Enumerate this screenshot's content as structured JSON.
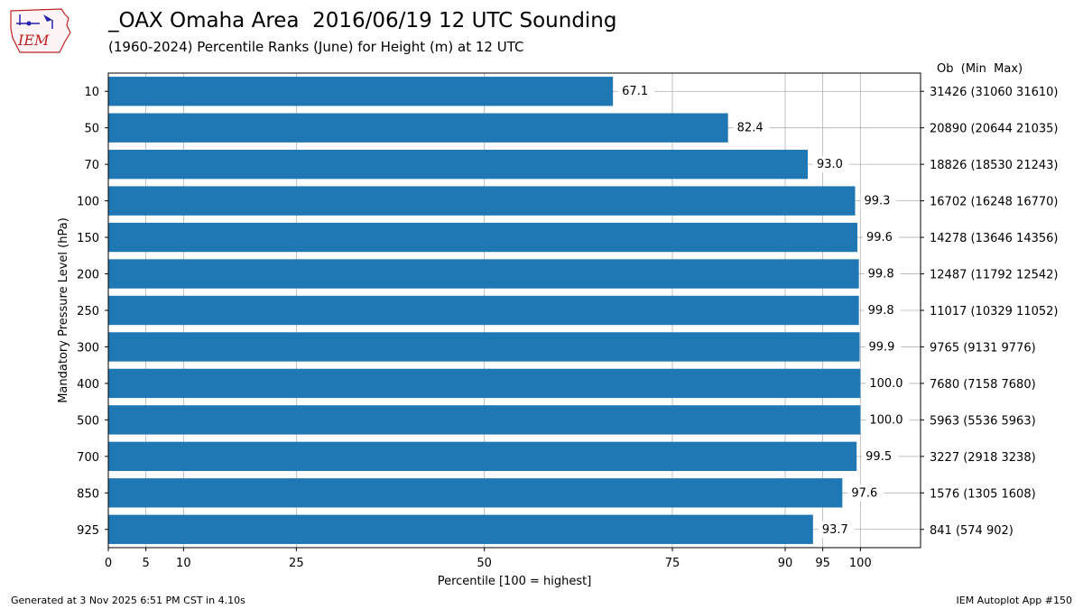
{
  "logo_text": "IEM",
  "chart_data": {
    "type": "bar",
    "orientation": "horizontal",
    "title": "_OAX Omaha Area  2016/06/19 12 UTC Sounding",
    "subtitle": "(1960-2024) Percentile Ranks (June) for Height (m) at 12 UTC",
    "xlabel": "Percentile [100 = highest]",
    "ylabel": "Mandatory Pressure Level (hPa)",
    "xlim": [
      0,
      108
    ],
    "xticks": [
      0,
      5,
      10,
      25,
      50,
      75,
      90,
      95,
      100
    ],
    "grid": true,
    "right_header": "Ob  (Min  Max)",
    "color": "#1f77b4",
    "categories": [
      "10",
      "50",
      "70",
      "100",
      "150",
      "200",
      "250",
      "300",
      "400",
      "500",
      "700",
      "850",
      "925"
    ],
    "values": [
      67.1,
      82.4,
      93.0,
      99.3,
      99.6,
      99.8,
      99.8,
      99.9,
      100.0,
      100.0,
      99.5,
      97.6,
      93.7
    ],
    "value_labels": [
      "67.1",
      "82.4",
      "93.0",
      "99.3",
      "99.6",
      "99.8",
      "99.8",
      "99.9",
      "100.0",
      "100.0",
      "99.5",
      "97.6",
      "93.7"
    ],
    "right_labels": [
      "31426 (31060 31610)",
      "20890 (20644 21035)",
      "18826 (18530 21243)",
      "16702 (16248 16770)",
      "14278 (13646 14356)",
      "12487 (11792 12542)",
      "11017 (10329 11052)",
      "9765 (9131 9776)",
      "7680 (7158 7680)",
      "5963 (5536 5963)",
      "3227 (2918 3238)",
      "1576 (1305 1608)",
      "841 (574 902)"
    ]
  },
  "footer": {
    "left": "Generated at 3 Nov 2025 6:51 PM CST in 4.10s",
    "right": "IEM Autoplot App #150"
  }
}
